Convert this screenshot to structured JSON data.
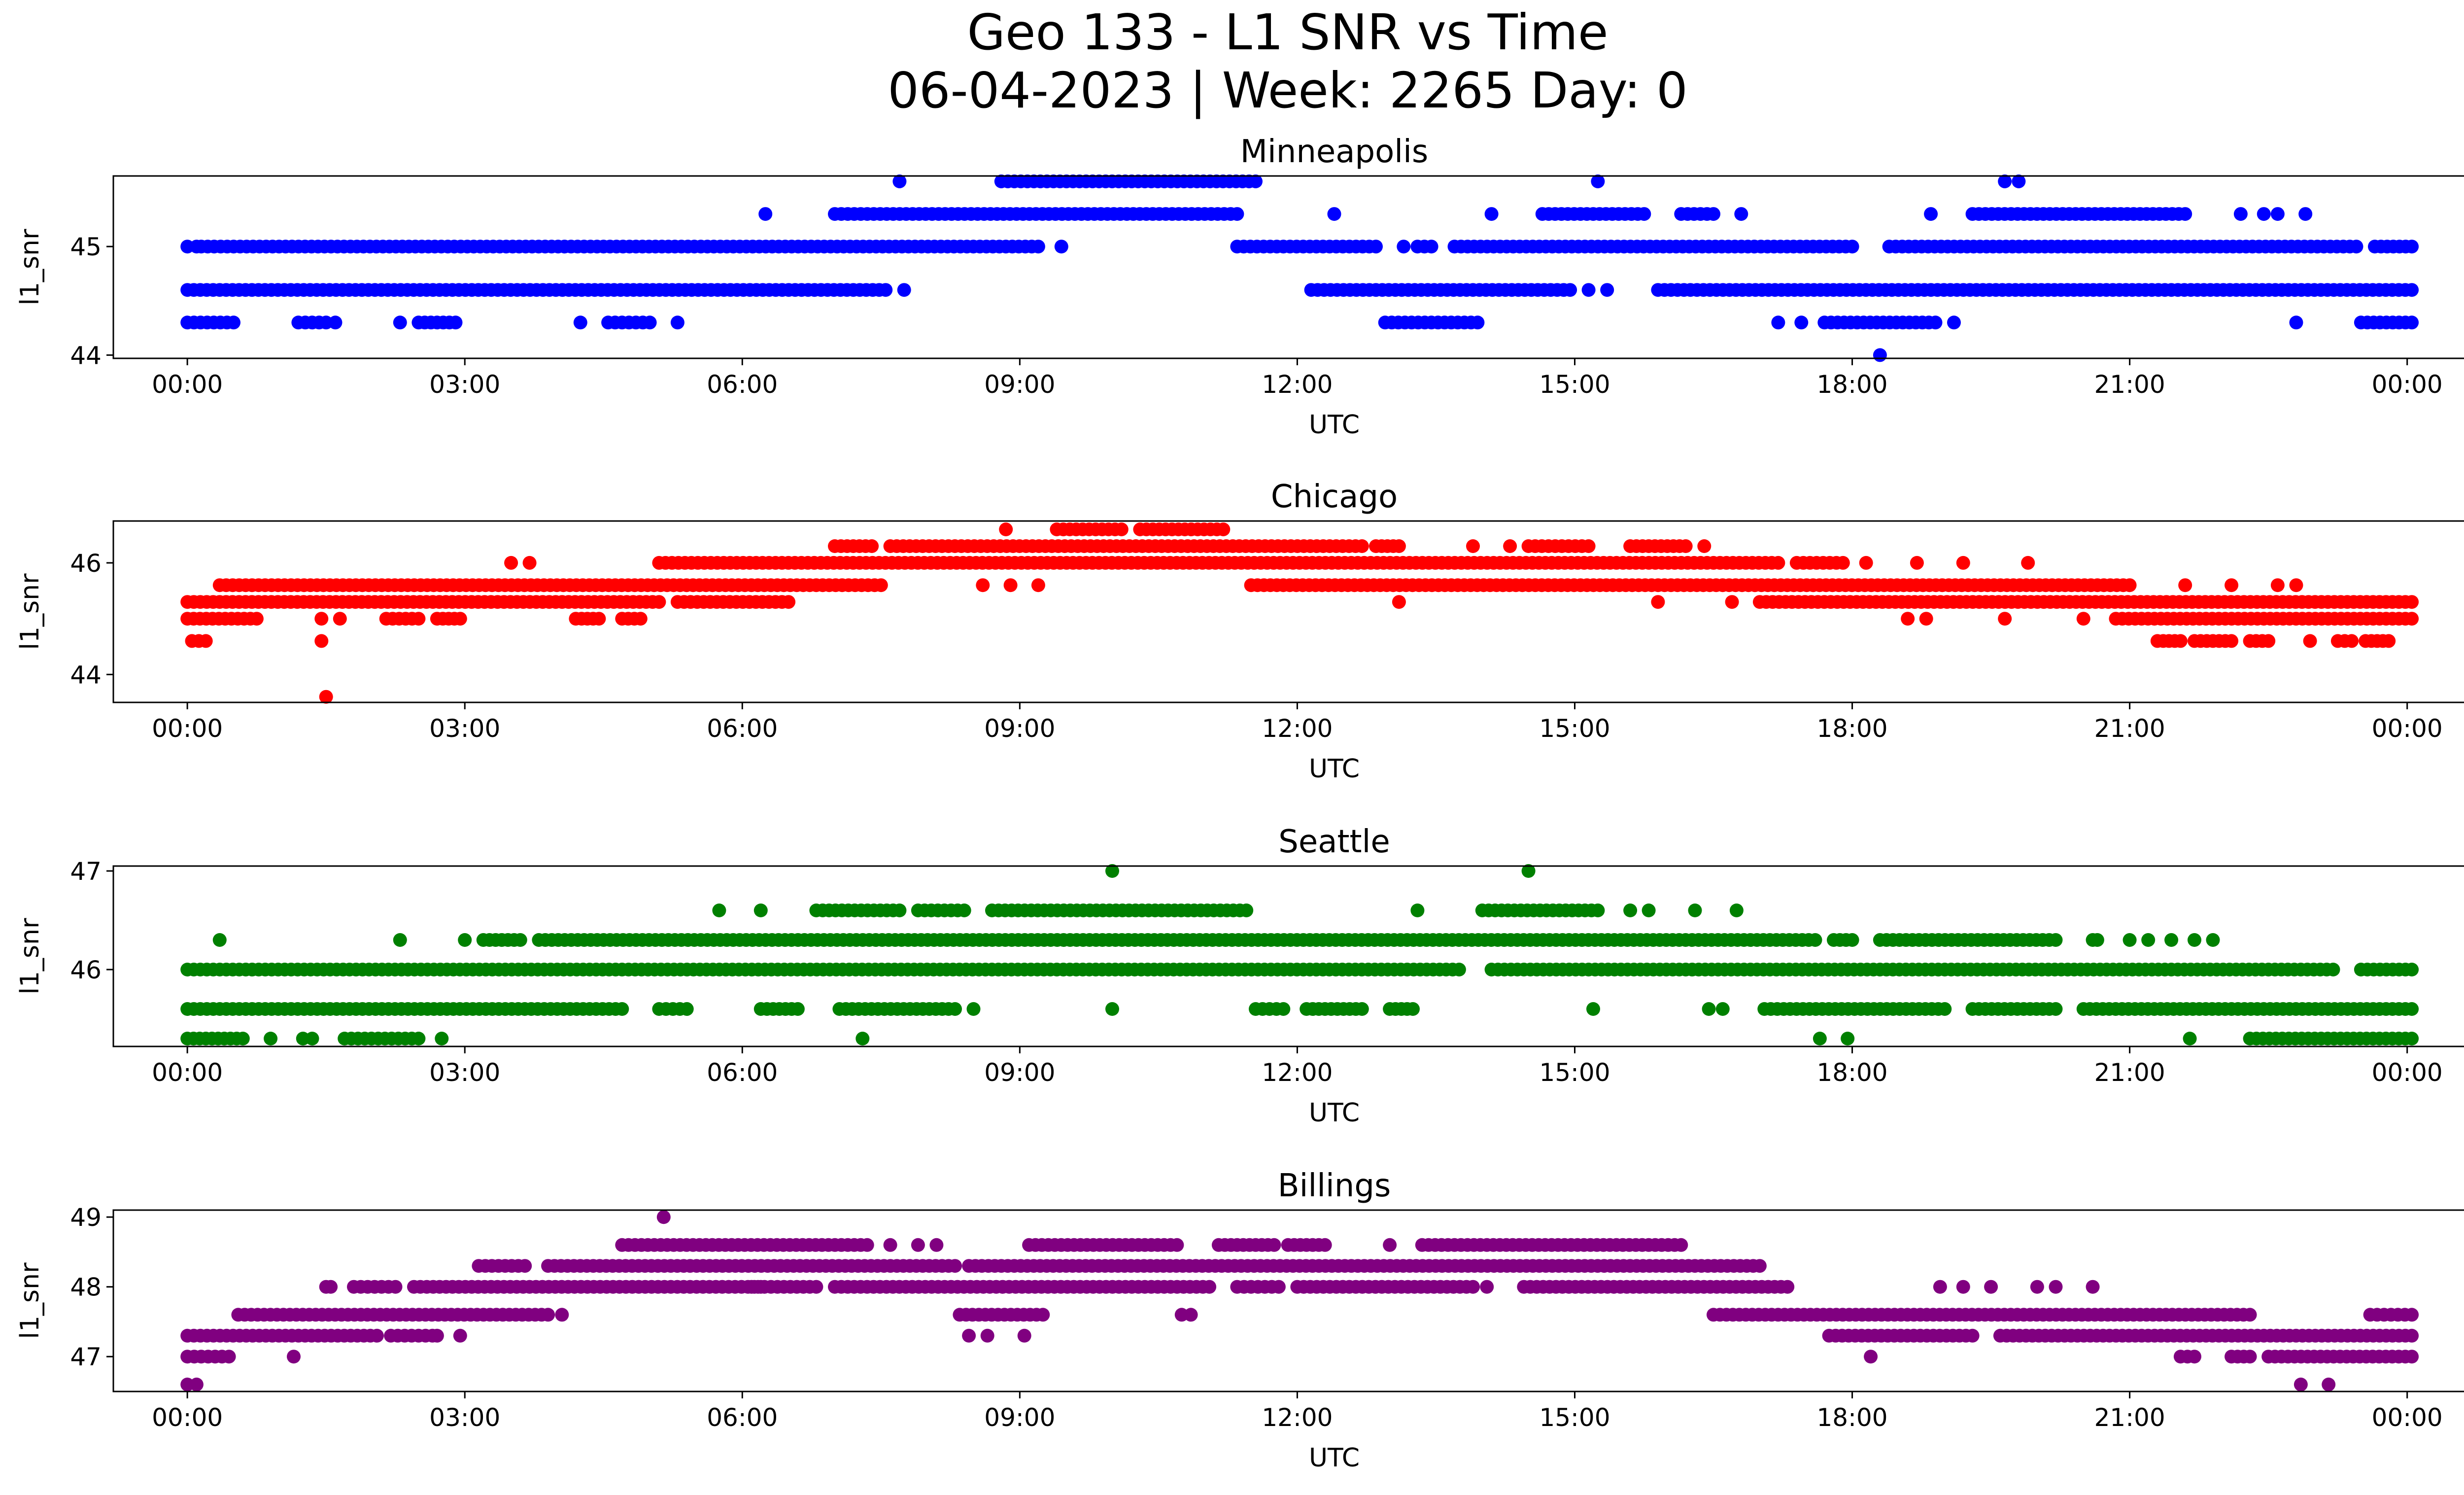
{
  "figure": {
    "title_line1": "Geo 133 - L1 SNR vs Time",
    "title_line2": "06-04-2023 | Week: 2265 Day: 0"
  },
  "chart_data": [
    {
      "type": "scatter",
      "title": "Minneapolis",
      "xlabel": "UTC",
      "ylabel": "l1_snr",
      "color": "#0000ff",
      "x_range_hours": [
        -0.8,
        25.6
      ],
      "xticks_hours": [
        0,
        3,
        6,
        9,
        12,
        15,
        18,
        21,
        24
      ],
      "xtick_labels": [
        "00:00",
        "03:00",
        "06:00",
        "09:00",
        "12:00",
        "15:00",
        "18:00",
        "21:00",
        "00:00"
      ],
      "ylim": [
        43.97,
        45.65
      ],
      "yticks": [
        44,
        45
      ],
      "levels": [
        44.3,
        44.6,
        45.0,
        45.3,
        45.6
      ],
      "runs": [
        {
          "y": 45.0,
          "from": 0.0,
          "to": 0.1
        },
        {
          "y": 45.0,
          "from": 0.15,
          "to": 9.2
        },
        {
          "y": 45.0,
          "from": 11.35,
          "to": 12.85
        },
        {
          "y": 45.0,
          "from": 13.3,
          "to": 13.45
        },
        {
          "y": 45.0,
          "from": 13.7,
          "to": 18.0
        },
        {
          "y": 45.0,
          "from": 18.4,
          "to": 23.45
        },
        {
          "y": 45.0,
          "from": 23.65,
          "to": 24.05
        },
        {
          "y": 44.6,
          "from": 0.0,
          "to": 7.55
        },
        {
          "y": 44.6,
          "from": 12.15,
          "to": 14.95
        },
        {
          "y": 44.6,
          "from": 15.9,
          "to": 24.05
        },
        {
          "y": 44.3,
          "from": 0.0,
          "to": 0.5
        },
        {
          "y": 44.3,
          "from": 1.2,
          "to": 1.5
        },
        {
          "y": 44.3,
          "from": 2.5,
          "to": 2.9
        },
        {
          "y": 44.3,
          "from": 4.55,
          "to": 5.0
        },
        {
          "y": 44.3,
          "from": 12.95,
          "to": 13.95
        },
        {
          "y": 44.3,
          "from": 17.7,
          "to": 18.9
        },
        {
          "y": 44.3,
          "from": 23.5,
          "to": 24.05
        },
        {
          "y": 45.3,
          "from": 7.0,
          "to": 11.35
        },
        {
          "y": 45.3,
          "from": 14.65,
          "to": 15.75
        },
        {
          "y": 45.3,
          "from": 16.15,
          "to": 16.5
        },
        {
          "y": 45.3,
          "from": 19.3,
          "to": 21.6
        },
        {
          "y": 45.6,
          "from": 8.8,
          "to": 11.55
        }
      ],
      "points": [
        {
          "x": 6.25,
          "y": 45.3
        },
        {
          "x": 7.7,
          "y": 45.6
        },
        {
          "x": 9.45,
          "y": 45.0
        },
        {
          "x": 7.75,
          "y": 44.6
        },
        {
          "x": 1.6,
          "y": 44.3
        },
        {
          "x": 2.3,
          "y": 44.3
        },
        {
          "x": 4.25,
          "y": 44.3
        },
        {
          "x": 5.3,
          "y": 44.3
        },
        {
          "x": 12.4,
          "y": 45.3
        },
        {
          "x": 14.1,
          "y": 45.3
        },
        {
          "x": 15.25,
          "y": 45.6
        },
        {
          "x": 16.8,
          "y": 45.3
        },
        {
          "x": 13.15,
          "y": 45.0
        },
        {
          "x": 15.15,
          "y": 44.6
        },
        {
          "x": 15.35,
          "y": 44.6
        },
        {
          "x": 17.2,
          "y": 44.3
        },
        {
          "x": 17.45,
          "y": 44.3
        },
        {
          "x": 18.3,
          "y": 44.0
        },
        {
          "x": 19.1,
          "y": 44.3
        },
        {
          "x": 18.85,
          "y": 45.3
        },
        {
          "x": 19.65,
          "y": 45.6
        },
        {
          "x": 19.8,
          "y": 45.6
        },
        {
          "x": 22.2,
          "y": 45.3
        },
        {
          "x": 22.45,
          "y": 45.3
        },
        {
          "x": 22.6,
          "y": 45.3
        },
        {
          "x": 22.9,
          "y": 45.3
        },
        {
          "x": 22.8,
          "y": 44.3
        }
      ]
    },
    {
      "type": "scatter",
      "title": "Chicago",
      "xlabel": "UTC",
      "ylabel": "l1_snr",
      "color": "#ff0000",
      "x_range_hours": [
        -0.8,
        25.6
      ],
      "xticks_hours": [
        0,
        3,
        6,
        9,
        12,
        15,
        18,
        21,
        24
      ],
      "xtick_labels": [
        "00:00",
        "03:00",
        "06:00",
        "09:00",
        "12:00",
        "15:00",
        "18:00",
        "21:00",
        "00:00"
      ],
      "ylim": [
        43.5,
        46.75
      ],
      "yticks": [
        44,
        46
      ],
      "levels": [
        44.6,
        45.0,
        45.3,
        45.6,
        46.0,
        46.3,
        46.6
      ],
      "runs": [
        {
          "y": 45.3,
          "from": 0.0,
          "to": 5.1
        },
        {
          "y": 45.3,
          "from": 5.3,
          "to": 6.5
        },
        {
          "y": 45.3,
          "from": 17.0,
          "to": 24.05
        },
        {
          "y": 45.0,
          "from": 0.0,
          "to": 0.75
        },
        {
          "y": 45.0,
          "from": 2.15,
          "to": 2.5
        },
        {
          "y": 45.0,
          "from": 2.7,
          "to": 2.95
        },
        {
          "y": 45.0,
          "from": 4.2,
          "to": 4.45
        },
        {
          "y": 45.0,
          "from": 4.7,
          "to": 4.9
        },
        {
          "y": 45.0,
          "from": 20.85,
          "to": 24.05
        },
        {
          "y": 45.6,
          "from": 0.35,
          "to": 7.5
        },
        {
          "y": 45.6,
          "from": 11.5,
          "to": 21.0
        },
        {
          "y": 44.6,
          "from": 0.05,
          "to": 0.2
        },
        {
          "y": 44.6,
          "from": 21.3,
          "to": 21.55
        },
        {
          "y": 44.6,
          "from": 21.7,
          "to": 22.1
        },
        {
          "y": 44.6,
          "from": 22.3,
          "to": 22.5
        },
        {
          "y": 44.6,
          "from": 23.25,
          "to": 23.4
        },
        {
          "y": 44.6,
          "from": 23.55,
          "to": 23.8
        },
        {
          "y": 46.0,
          "from": 5.1,
          "to": 17.2
        },
        {
          "y": 46.0,
          "from": 17.4,
          "to": 17.9
        },
        {
          "y": 46.3,
          "from": 7.0,
          "to": 7.4
        },
        {
          "y": 46.3,
          "from": 7.6,
          "to": 12.7
        },
        {
          "y": 46.3,
          "from": 12.85,
          "to": 13.1
        },
        {
          "y": 46.3,
          "from": 14.5,
          "to": 15.15
        },
        {
          "y": 46.3,
          "from": 15.6,
          "to": 16.2
        },
        {
          "y": 46.6,
          "from": 9.4,
          "to": 10.1
        },
        {
          "y": 46.6,
          "from": 10.3,
          "to": 11.2
        }
      ],
      "points": [
        {
          "x": 1.45,
          "y": 44.6
        },
        {
          "x": 1.5,
          "y": 43.6
        },
        {
          "x": 1.45,
          "y": 45.0
        },
        {
          "x": 1.65,
          "y": 45.0
        },
        {
          "x": 3.5,
          "y": 46.0
        },
        {
          "x": 3.7,
          "y": 46.0
        },
        {
          "x": 8.85,
          "y": 46.6
        },
        {
          "x": 8.6,
          "y": 45.6
        },
        {
          "x": 8.9,
          "y": 45.6
        },
        {
          "x": 9.2,
          "y": 45.6
        },
        {
          "x": 13.1,
          "y": 45.3
        },
        {
          "x": 15.9,
          "y": 45.3
        },
        {
          "x": 16.7,
          "y": 45.3
        },
        {
          "x": 11.2,
          "y": 46.6
        },
        {
          "x": 13.9,
          "y": 46.3
        },
        {
          "x": 14.3,
          "y": 46.3
        },
        {
          "x": 16.4,
          "y": 46.3
        },
        {
          "x": 18.15,
          "y": 46.0
        },
        {
          "x": 18.7,
          "y": 46.0
        },
        {
          "x": 19.2,
          "y": 46.0
        },
        {
          "x": 19.9,
          "y": 46.0
        },
        {
          "x": 18.6,
          "y": 45.0
        },
        {
          "x": 18.8,
          "y": 45.0
        },
        {
          "x": 19.65,
          "y": 45.0
        },
        {
          "x": 20.5,
          "y": 45.0
        },
        {
          "x": 21.6,
          "y": 45.6
        },
        {
          "x": 22.1,
          "y": 45.6
        },
        {
          "x": 22.6,
          "y": 45.6
        },
        {
          "x": 22.8,
          "y": 45.6
        },
        {
          "x": 22.95,
          "y": 44.6
        }
      ]
    },
    {
      "type": "scatter",
      "title": "Seattle",
      "xlabel": "UTC",
      "ylabel": "l1_snr",
      "color": "#008000",
      "x_range_hours": [
        -0.8,
        25.6
      ],
      "xticks_hours": [
        0,
        3,
        6,
        9,
        12,
        15,
        18,
        21,
        24
      ],
      "xtick_labels": [
        "00:00",
        "03:00",
        "06:00",
        "09:00",
        "12:00",
        "15:00",
        "18:00",
        "21:00",
        "00:00"
      ],
      "ylim": [
        45.22,
        47.05
      ],
      "yticks": [
        46,
        47
      ],
      "levels": [
        45.3,
        45.6,
        46.0,
        46.3,
        46.6,
        47.0
      ],
      "runs": [
        {
          "y": 46.0,
          "from": 0.0,
          "to": 13.75
        },
        {
          "y": 46.0,
          "from": 14.1,
          "to": 23.2
        },
        {
          "y": 46.0,
          "from": 23.5,
          "to": 24.05
        },
        {
          "y": 45.6,
          "from": 0.0,
          "to": 4.7
        },
        {
          "y": 45.6,
          "from": 5.1,
          "to": 5.4
        },
        {
          "y": 45.6,
          "from": 6.2,
          "to": 6.6
        },
        {
          "y": 45.6,
          "from": 7.05,
          "to": 8.3
        },
        {
          "y": 45.6,
          "from": 11.55,
          "to": 11.85
        },
        {
          "y": 45.6,
          "from": 12.1,
          "to": 12.7
        },
        {
          "y": 45.6,
          "from": 13.0,
          "to": 13.25
        },
        {
          "y": 45.6,
          "from": 17.05,
          "to": 19.0
        },
        {
          "y": 45.6,
          "from": 19.3,
          "to": 20.2
        },
        {
          "y": 45.6,
          "from": 20.5,
          "to": 24.05
        },
        {
          "y": 45.3,
          "from": 0.0,
          "to": 0.6
        },
        {
          "y": 45.3,
          "from": 1.7,
          "to": 2.5
        },
        {
          "y": 45.3,
          "from": 22.3,
          "to": 24.05
        },
        {
          "y": 46.3,
          "from": 3.2,
          "to": 3.6
        },
        {
          "y": 46.3,
          "from": 3.8,
          "to": 17.6
        },
        {
          "y": 46.3,
          "from": 17.8,
          "to": 18.0
        },
        {
          "y": 46.3,
          "from": 18.3,
          "to": 20.2
        },
        {
          "y": 46.6,
          "from": 6.8,
          "to": 7.7
        },
        {
          "y": 46.6,
          "from": 7.9,
          "to": 8.4
        },
        {
          "y": 46.6,
          "from": 8.7,
          "to": 11.45
        },
        {
          "y": 46.6,
          "from": 14.0,
          "to": 15.25
        }
      ],
      "points": [
        {
          "x": 0.35,
          "y": 46.3
        },
        {
          "x": 2.3,
          "y": 46.3
        },
        {
          "x": 3.0,
          "y": 46.3
        },
        {
          "x": 0.9,
          "y": 45.3
        },
        {
          "x": 1.25,
          "y": 45.3
        },
        {
          "x": 1.35,
          "y": 45.3
        },
        {
          "x": 2.75,
          "y": 45.3
        },
        {
          "x": 5.75,
          "y": 46.6
        },
        {
          "x": 6.2,
          "y": 46.6
        },
        {
          "x": 7.3,
          "y": 45.3
        },
        {
          "x": 8.5,
          "y": 45.6
        },
        {
          "x": 10.0,
          "y": 47.0
        },
        {
          "x": 10.0,
          "y": 45.6
        },
        {
          "x": 13.3,
          "y": 46.6
        },
        {
          "x": 14.5,
          "y": 47.0
        },
        {
          "x": 15.6,
          "y": 46.6
        },
        {
          "x": 15.8,
          "y": 46.6
        },
        {
          "x": 16.3,
          "y": 46.6
        },
        {
          "x": 16.75,
          "y": 46.6
        },
        {
          "x": 15.2,
          "y": 45.6
        },
        {
          "x": 16.45,
          "y": 45.6
        },
        {
          "x": 16.6,
          "y": 45.6
        },
        {
          "x": 17.65,
          "y": 45.3
        },
        {
          "x": 17.95,
          "y": 45.3
        },
        {
          "x": 20.6,
          "y": 46.3
        },
        {
          "x": 20.65,
          "y": 46.3
        },
        {
          "x": 21.0,
          "y": 46.3
        },
        {
          "x": 21.2,
          "y": 46.3
        },
        {
          "x": 21.45,
          "y": 46.3
        },
        {
          "x": 21.7,
          "y": 46.3
        },
        {
          "x": 21.9,
          "y": 46.3
        },
        {
          "x": 21.65,
          "y": 45.3
        }
      ]
    },
    {
      "type": "scatter",
      "title": "Billings",
      "xlabel": "UTC",
      "ylabel": "l1_snr",
      "color": "#800080",
      "x_range_hours": [
        -0.8,
        25.6
      ],
      "xticks_hours": [
        0,
        3,
        6,
        9,
        12,
        15,
        18,
        21,
        24
      ],
      "xtick_labels": [
        "00:00",
        "03:00",
        "06:00",
        "09:00",
        "12:00",
        "15:00",
        "18:00",
        "21:00",
        "00:00"
      ],
      "ylim": [
        46.5,
        49.1
      ],
      "yticks": [
        47,
        48,
        49
      ],
      "levels": [
        46.6,
        47.0,
        47.3,
        47.6,
        48.0,
        48.3,
        48.6,
        49.0
      ],
      "runs": [
        {
          "y": 47.0,
          "from": 0.0,
          "to": 0.45
        },
        {
          "y": 47.0,
          "from": 21.55,
          "to": 21.7
        },
        {
          "y": 47.0,
          "from": 22.1,
          "to": 22.3
        },
        {
          "y": 47.0,
          "from": 22.5,
          "to": 24.05
        },
        {
          "y": 47.3,
          "from": 0.0,
          "to": 2.05
        },
        {
          "y": 47.3,
          "from": 2.2,
          "to": 2.65
        },
        {
          "y": 47.3,
          "from": 17.75,
          "to": 19.3
        },
        {
          "y": 47.3,
          "from": 19.6,
          "to": 24.05
        },
        {
          "y": 47.6,
          "from": 0.55,
          "to": 3.9
        },
        {
          "y": 47.6,
          "from": 8.35,
          "to": 9.25
        },
        {
          "y": 47.6,
          "from": 10.75,
          "to": 10.85
        },
        {
          "y": 47.6,
          "from": 16.5,
          "to": 22.3
        },
        {
          "y": 47.6,
          "from": 23.6,
          "to": 24.05
        },
        {
          "y": 48.0,
          "from": 1.5,
          "to": 1.55
        },
        {
          "y": 48.0,
          "from": 1.8,
          "to": 2.25
        },
        {
          "y": 48.0,
          "from": 2.45,
          "to": 6.2
        },
        {
          "y": 48.0,
          "from": 6.1,
          "to": 6.8
        },
        {
          "y": 48.0,
          "from": 7.0,
          "to": 11.05
        },
        {
          "y": 48.0,
          "from": 11.35,
          "to": 11.8
        },
        {
          "y": 48.0,
          "from": 12.0,
          "to": 13.9
        },
        {
          "y": 48.0,
          "from": 14.45,
          "to": 17.3
        },
        {
          "y": 48.3,
          "from": 3.15,
          "to": 3.65
        },
        {
          "y": 48.3,
          "from": 3.9,
          "to": 8.3
        },
        {
          "y": 48.3,
          "from": 8.45,
          "to": 17.0
        },
        {
          "y": 48.6,
          "from": 4.7,
          "to": 7.35
        },
        {
          "y": 48.6,
          "from": 9.1,
          "to": 10.7
        },
        {
          "y": 48.6,
          "from": 11.15,
          "to": 11.75
        },
        {
          "y": 48.6,
          "from": 11.9,
          "to": 12.3
        },
        {
          "y": 48.6,
          "from": 13.35,
          "to": 16.15
        },
        {
          "y": 46.6,
          "from": 0.0,
          "to": 0.1
        }
      ],
      "points": [
        {
          "x": 1.15,
          "y": 47.0
        },
        {
          "x": 2.7,
          "y": 47.3
        },
        {
          "x": 2.95,
          "y": 47.3
        },
        {
          "x": 4.05,
          "y": 47.6
        },
        {
          "x": 5.15,
          "y": 49.0
        },
        {
          "x": 7.6,
          "y": 48.6
        },
        {
          "x": 7.9,
          "y": 48.6
        },
        {
          "x": 8.1,
          "y": 48.6
        },
        {
          "x": 8.45,
          "y": 47.3
        },
        {
          "x": 8.65,
          "y": 47.3
        },
        {
          "x": 9.05,
          "y": 47.3
        },
        {
          "x": 13.0,
          "y": 48.6
        },
        {
          "x": 14.05,
          "y": 48.0
        },
        {
          "x": 18.2,
          "y": 47.0
        },
        {
          "x": 18.95,
          "y": 48.0
        },
        {
          "x": 19.2,
          "y": 48.0
        },
        {
          "x": 19.5,
          "y": 48.0
        },
        {
          "x": 20.0,
          "y": 48.0
        },
        {
          "x": 20.2,
          "y": 48.0
        },
        {
          "x": 20.6,
          "y": 48.0
        },
        {
          "x": 23.15,
          "y": 46.6
        },
        {
          "x": 22.85,
          "y": 46.6
        }
      ]
    }
  ]
}
